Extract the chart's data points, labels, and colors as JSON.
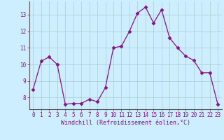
{
  "x": [
    0,
    1,
    2,
    3,
    4,
    5,
    6,
    7,
    8,
    9,
    10,
    11,
    12,
    13,
    14,
    15,
    16,
    17,
    18,
    19,
    20,
    21,
    22,
    23
  ],
  "y": [
    8.5,
    10.2,
    10.45,
    10.0,
    7.6,
    7.65,
    7.65,
    7.9,
    7.75,
    8.6,
    11.0,
    11.1,
    12.0,
    13.1,
    13.45,
    12.5,
    13.3,
    11.6,
    11.0,
    10.5,
    10.25,
    9.5,
    9.5,
    7.6
  ],
  "line_color": "#881188",
  "marker": "D",
  "marker_size": 2.5,
  "bg_color": "#cceeff",
  "grid_color": "#aacccc",
  "xlabel": "Windchill (Refroidissement éolien,°C)",
  "yticks": [
    8,
    9,
    10,
    11,
    12,
    13
  ],
  "xticks": [
    0,
    1,
    2,
    3,
    4,
    5,
    6,
    7,
    8,
    9,
    10,
    11,
    12,
    13,
    14,
    15,
    16,
    17,
    18,
    19,
    20,
    21,
    22,
    23
  ],
  "ylim": [
    7.3,
    13.8
  ],
  "xlim": [
    -0.5,
    23.5
  ],
  "font_color": "#881188",
  "tick_fontsize": 5.5,
  "label_fontsize": 6.0
}
